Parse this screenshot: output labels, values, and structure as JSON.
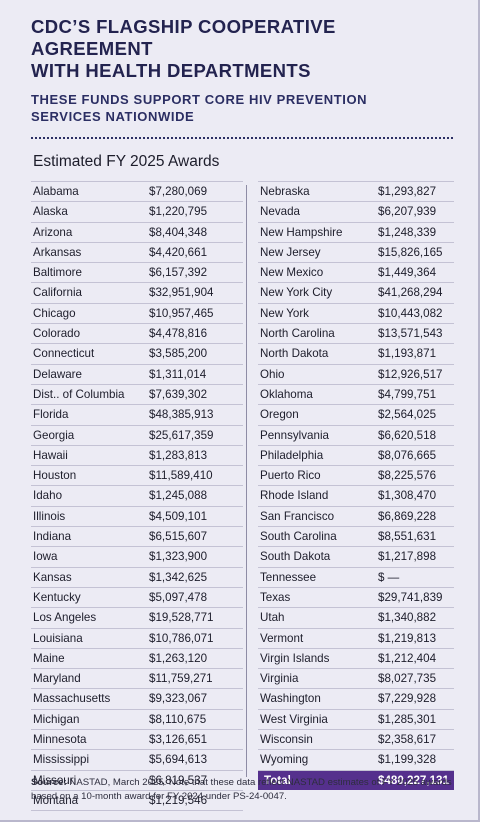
{
  "header": {
    "title_line1": "CDC’S FLAGSHIP COOPERATIVE AGREEMENT",
    "title_line2": "WITH HEALTH DEPARTMENTS",
    "subtitle_line1": "THESE FUNDS SUPPORT CORE HIV PREVENTION",
    "subtitle_line2": "SERVICES NATIONWIDE"
  },
  "table_title": "Estimated FY 2025 Awards",
  "left_rows": [
    {
      "name": "Alabama",
      "amount": "$7,280,069"
    },
    {
      "name": "Alaska",
      "amount": "$1,220,795"
    },
    {
      "name": "Arizona",
      "amount": "$8,404,348"
    },
    {
      "name": "Arkansas",
      "amount": "$4,420,661"
    },
    {
      "name": "Baltimore",
      "amount": "$6,157,392"
    },
    {
      "name": "California",
      "amount": "$32,951,904"
    },
    {
      "name": "Chicago",
      "amount": "$10,957,465"
    },
    {
      "name": "Colorado",
      "amount": "$4,478,816"
    },
    {
      "name": "Connecticut",
      "amount": "$3,585,200"
    },
    {
      "name": "Delaware",
      "amount": "$1,311,014"
    },
    {
      "name": "Dist.. of Columbia",
      "amount": "$7,639,302"
    },
    {
      "name": "Florida",
      "amount": "$48,385,913"
    },
    {
      "name": "Georgia",
      "amount": "$25,617,359"
    },
    {
      "name": "Hawaii",
      "amount": "$1,283,813"
    },
    {
      "name": "Houston",
      "amount": "$11,589,410"
    },
    {
      "name": "Idaho",
      "amount": "$1,245,088"
    },
    {
      "name": "Illinois",
      "amount": "$4,509,101"
    },
    {
      "name": "Indiana",
      "amount": "$6,515,607"
    },
    {
      "name": "Iowa",
      "amount": "$1,323,900"
    },
    {
      "name": "Kansas",
      "amount": "$1,342,625"
    },
    {
      "name": "Kentucky",
      "amount": "$5,097,478"
    },
    {
      "name": "Los Angeles",
      "amount": "$19,528,771"
    },
    {
      "name": "Louisiana",
      "amount": "$10,786,071"
    },
    {
      "name": "Maine",
      "amount": "$1,263,120"
    },
    {
      "name": "Maryland",
      "amount": "$11,759,271"
    },
    {
      "name": "Massachusetts",
      "amount": "$9,323,067"
    },
    {
      "name": "Michigan",
      "amount": "$8,110,675"
    },
    {
      "name": "Minnesota",
      "amount": "$3,126,651"
    },
    {
      "name": "Mississippi",
      "amount": "$5,694,613"
    },
    {
      "name": "Missouri",
      "amount": "$6,819,537"
    },
    {
      "name": "Montana",
      "amount": "$1,219,546"
    }
  ],
  "right_rows": [
    {
      "name": "Nebraska",
      "amount": "$1,293,827"
    },
    {
      "name": "Nevada",
      "amount": "$6,207,939"
    },
    {
      "name": "New Hampshire",
      "amount": "$1,248,339"
    },
    {
      "name": "New Jersey",
      "amount": "$15,826,165"
    },
    {
      "name": "New Mexico",
      "amount": "$1,449,364"
    },
    {
      "name": "New York City",
      "amount": "$41,268,294"
    },
    {
      "name": "New York",
      "amount": "$10,443,082"
    },
    {
      "name": "North Carolina",
      "amount": "$13,571,543"
    },
    {
      "name": "North Dakota",
      "amount": "$1,193,871"
    },
    {
      "name": "Ohio",
      "amount": "$12,926,517"
    },
    {
      "name": "Oklahoma",
      "amount": "$4,799,751"
    },
    {
      "name": "Oregon",
      "amount": "$2,564,025"
    },
    {
      "name": "Pennsylvania",
      "amount": "$6,620,518"
    },
    {
      "name": "Philadelphia",
      "amount": "$8,076,665"
    },
    {
      "name": "Puerto Rico",
      "amount": "$8,225,576"
    },
    {
      "name": "Rhode Island",
      "amount": "$1,308,470"
    },
    {
      "name": "San Francisco",
      "amount": "$6,869,228"
    },
    {
      "name": "South Carolina",
      "amount": "$8,551,631"
    },
    {
      "name": "South Dakota",
      "amount": "$1,217,898"
    },
    {
      "name": "Tennessee",
      "amount": "$ —"
    },
    {
      "name": "Texas",
      "amount": "$29,741,839"
    },
    {
      "name": "Utah",
      "amount": "$1,340,882"
    },
    {
      "name": "Vermont",
      "amount": "$1,219,813"
    },
    {
      "name": "Virgin Islands",
      "amount": "$1,212,404"
    },
    {
      "name": "Virginia",
      "amount": "$8,027,735"
    },
    {
      "name": "Washington",
      "amount": "$7,229,928"
    },
    {
      "name": "West Virginia",
      "amount": "$1,285,301"
    },
    {
      "name": "Wisconsin",
      "amount": "$2,358,617"
    },
    {
      "name": "Wyoming",
      "amount": "$1,199,328"
    }
  ],
  "total": {
    "name": "Total",
    "amount": "$480,227,131"
  },
  "source": {
    "label": "Source:",
    "text": " NASTAD, March 2025. Note that these data reflect NASTAD estimates of FY 2025 awards based on a 10-month award for FY 2024 under PS-24-0047."
  },
  "colors": {
    "title": "#23234f",
    "total_row_bg": "#55308d",
    "background": "#ecebf4"
  }
}
